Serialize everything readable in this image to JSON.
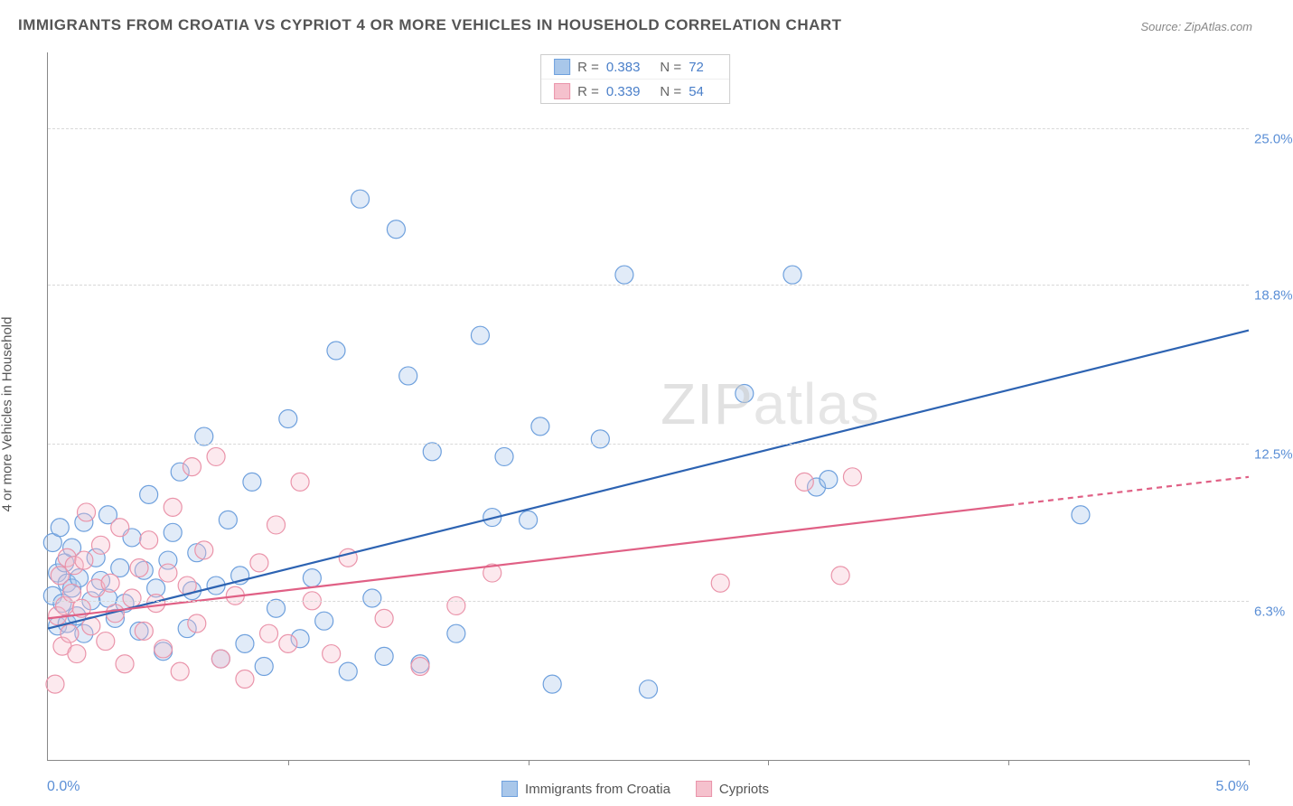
{
  "title": "IMMIGRANTS FROM CROATIA VS CYPRIOT 4 OR MORE VEHICLES IN HOUSEHOLD CORRELATION CHART",
  "source": "Source: ZipAtlas.com",
  "y_axis_label": "4 or more Vehicles in Household",
  "watermark_bold": "ZIP",
  "watermark_thin": "atlas",
  "chart": {
    "type": "scatter_with_regression",
    "xlim": [
      0.0,
      5.0
    ],
    "ylim": [
      0.0,
      28.0
    ],
    "x_tick_labels": {
      "min": "0.0%",
      "max": "5.0%"
    },
    "y_ticks": [
      {
        "value": 6.3,
        "label": "6.3%"
      },
      {
        "value": 12.5,
        "label": "12.5%"
      },
      {
        "value": 18.8,
        "label": "18.8%"
      },
      {
        "value": 25.0,
        "label": "25.0%"
      }
    ],
    "x_tick_positions": [
      0.0,
      1.0,
      2.0,
      3.0,
      4.0,
      5.0
    ],
    "background_color": "#ffffff",
    "grid_color": "#d8d8d8",
    "marker_radius": 10,
    "marker_stroke_width": 1.2,
    "marker_fill_opacity": 0.35,
    "line_width": 2.2,
    "series": [
      {
        "name": "Immigrants from Croatia",
        "color_fill": "#a9c7ea",
        "color_stroke": "#6ea0dd",
        "line_color": "#2d63b2",
        "stats": {
          "R": "0.383",
          "N": "72"
        },
        "regression": {
          "x1": 0.0,
          "y1": 5.2,
          "x2": 5.0,
          "y2": 17.0,
          "dash_after_x": null
        },
        "points": [
          [
            0.02,
            6.5
          ],
          [
            0.02,
            8.6
          ],
          [
            0.04,
            5.3
          ],
          [
            0.04,
            7.4
          ],
          [
            0.05,
            9.2
          ],
          [
            0.06,
            6.2
          ],
          [
            0.07,
            7.8
          ],
          [
            0.08,
            5.4
          ],
          [
            0.08,
            7.0
          ],
          [
            0.1,
            6.8
          ],
          [
            0.1,
            8.4
          ],
          [
            0.12,
            5.7
          ],
          [
            0.13,
            7.2
          ],
          [
            0.15,
            9.4
          ],
          [
            0.15,
            5.0
          ],
          [
            0.18,
            6.3
          ],
          [
            0.2,
            8.0
          ],
          [
            0.22,
            7.1
          ],
          [
            0.25,
            6.4
          ],
          [
            0.25,
            9.7
          ],
          [
            0.28,
            5.6
          ],
          [
            0.3,
            7.6
          ],
          [
            0.32,
            6.2
          ],
          [
            0.35,
            8.8
          ],
          [
            0.38,
            5.1
          ],
          [
            0.4,
            7.5
          ],
          [
            0.42,
            10.5
          ],
          [
            0.45,
            6.8
          ],
          [
            0.48,
            4.3
          ],
          [
            0.5,
            7.9
          ],
          [
            0.52,
            9.0
          ],
          [
            0.55,
            11.4
          ],
          [
            0.58,
            5.2
          ],
          [
            0.6,
            6.7
          ],
          [
            0.62,
            8.2
          ],
          [
            0.65,
            12.8
          ],
          [
            0.7,
            6.9
          ],
          [
            0.72,
            4.0
          ],
          [
            0.75,
            9.5
          ],
          [
            0.8,
            7.3
          ],
          [
            0.82,
            4.6
          ],
          [
            0.85,
            11.0
          ],
          [
            0.9,
            3.7
          ],
          [
            0.95,
            6.0
          ],
          [
            1.0,
            13.5
          ],
          [
            1.05,
            4.8
          ],
          [
            1.1,
            7.2
          ],
          [
            1.15,
            5.5
          ],
          [
            1.2,
            16.2
          ],
          [
            1.25,
            3.5
          ],
          [
            1.3,
            22.2
          ],
          [
            1.35,
            6.4
          ],
          [
            1.4,
            4.1
          ],
          [
            1.45,
            21.0
          ],
          [
            1.5,
            15.2
          ],
          [
            1.55,
            3.8
          ],
          [
            1.6,
            12.2
          ],
          [
            1.7,
            5.0
          ],
          [
            1.8,
            16.8
          ],
          [
            1.85,
            9.6
          ],
          [
            1.9,
            12.0
          ],
          [
            2.0,
            9.5
          ],
          [
            2.05,
            13.2
          ],
          [
            2.1,
            3.0
          ],
          [
            2.3,
            12.7
          ],
          [
            2.4,
            19.2
          ],
          [
            2.5,
            2.8
          ],
          [
            2.9,
            14.5
          ],
          [
            3.1,
            19.2
          ],
          [
            3.2,
            10.8
          ],
          [
            3.25,
            11.1
          ],
          [
            4.3,
            9.7
          ]
        ]
      },
      {
        "name": "Cypriots",
        "color_fill": "#f5c1cd",
        "color_stroke": "#ea94aa",
        "line_color": "#e06085",
        "stats": {
          "R": "0.339",
          "N": "54"
        },
        "regression": {
          "x1": 0.0,
          "y1": 5.6,
          "x2": 5.0,
          "y2": 11.2,
          "dash_after_x": 4.0
        },
        "points": [
          [
            0.03,
            3.0
          ],
          [
            0.04,
            5.7
          ],
          [
            0.05,
            7.3
          ],
          [
            0.06,
            4.5
          ],
          [
            0.07,
            6.1
          ],
          [
            0.08,
            8.0
          ],
          [
            0.09,
            5.0
          ],
          [
            0.1,
            6.6
          ],
          [
            0.11,
            7.7
          ],
          [
            0.12,
            4.2
          ],
          [
            0.14,
            6.0
          ],
          [
            0.15,
            7.9
          ],
          [
            0.16,
            9.8
          ],
          [
            0.18,
            5.3
          ],
          [
            0.2,
            6.8
          ],
          [
            0.22,
            8.5
          ],
          [
            0.24,
            4.7
          ],
          [
            0.26,
            7.0
          ],
          [
            0.28,
            5.8
          ],
          [
            0.3,
            9.2
          ],
          [
            0.32,
            3.8
          ],
          [
            0.35,
            6.4
          ],
          [
            0.38,
            7.6
          ],
          [
            0.4,
            5.1
          ],
          [
            0.42,
            8.7
          ],
          [
            0.45,
            6.2
          ],
          [
            0.48,
            4.4
          ],
          [
            0.5,
            7.4
          ],
          [
            0.52,
            10.0
          ],
          [
            0.55,
            3.5
          ],
          [
            0.58,
            6.9
          ],
          [
            0.6,
            11.6
          ],
          [
            0.62,
            5.4
          ],
          [
            0.65,
            8.3
          ],
          [
            0.7,
            12.0
          ],
          [
            0.72,
            4.0
          ],
          [
            0.78,
            6.5
          ],
          [
            0.82,
            3.2
          ],
          [
            0.88,
            7.8
          ],
          [
            0.92,
            5.0
          ],
          [
            0.95,
            9.3
          ],
          [
            1.0,
            4.6
          ],
          [
            1.05,
            11.0
          ],
          [
            1.1,
            6.3
          ],
          [
            1.18,
            4.2
          ],
          [
            1.25,
            8.0
          ],
          [
            1.4,
            5.6
          ],
          [
            1.55,
            3.7
          ],
          [
            1.7,
            6.1
          ],
          [
            1.85,
            7.4
          ],
          [
            2.8,
            7.0
          ],
          [
            3.15,
            11.0
          ],
          [
            3.3,
            7.3
          ],
          [
            3.35,
            11.2
          ]
        ]
      }
    ]
  },
  "legend_labels": {
    "R": "R =",
    "N": "N ="
  }
}
